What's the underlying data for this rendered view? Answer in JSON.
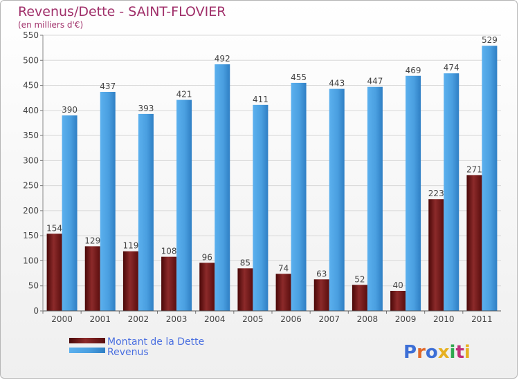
{
  "chart_data": {
    "type": "bar",
    "title": "Revenus/Dette - SAINT-FLOVIER",
    "subtitle": "(en milliers d'€)",
    "xlabel": "",
    "ylabel": "",
    "ylim": [
      0,
      550
    ],
    "yticks": [
      0,
      50,
      100,
      150,
      200,
      250,
      300,
      350,
      400,
      450,
      500,
      550
    ],
    "grid": true,
    "legend_position": "bottom-left",
    "categories": [
      "2000",
      "2001",
      "2002",
      "2003",
      "2004",
      "2005",
      "2006",
      "2007",
      "2008",
      "2009",
      "2010",
      "2011"
    ],
    "series": [
      {
        "name": "Montant de la Dette",
        "color": "#7a1a1a",
        "values": [
          154,
          129,
          119,
          108,
          96,
          85,
          74,
          63,
          52,
          40,
          223,
          271
        ]
      },
      {
        "name": "Revenus",
        "color": "#4a9fe0",
        "values": [
          390,
          437,
          393,
          421,
          492,
          411,
          455,
          443,
          447,
          469,
          474,
          529
        ]
      }
    ]
  },
  "colors": {
    "title": "#a0306a",
    "legend_text": "#4a6fe0",
    "axis": "#444444",
    "grid": "#d8d8d8"
  },
  "logo": {
    "text": "Proxiti"
  }
}
